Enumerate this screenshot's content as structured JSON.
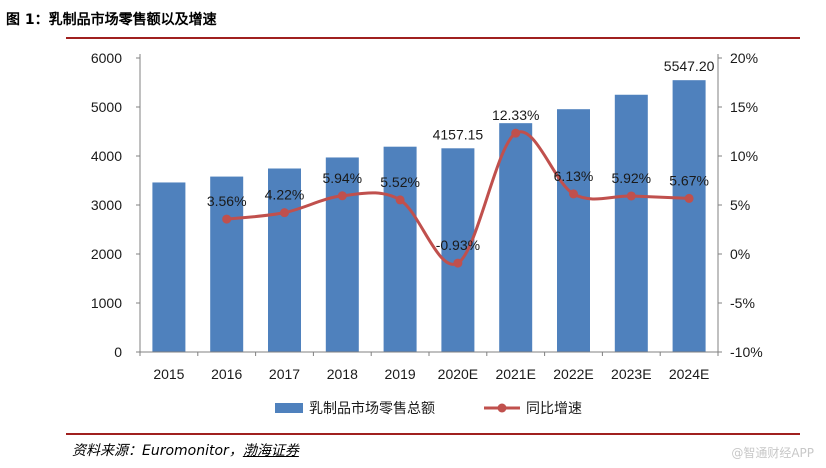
{
  "figure": {
    "title": "图 1：乳制品市场零售额以及增速",
    "source_label": "资料来源：",
    "source_main": "Euromonitor，",
    "source_org": "渤海证券",
    "watermark": "@智通财经APP"
  },
  "chart_data": {
    "type": "bar+line",
    "categories": [
      "2015",
      "2016",
      "2017",
      "2018",
      "2019",
      "2020E",
      "2021E",
      "2022E",
      "2023E",
      "2024E"
    ],
    "series": [
      {
        "name": "乳制品市场零售总额",
        "type": "bar",
        "axis": "left",
        "color": "#4f81bd",
        "values": [
          3460,
          3580,
          3745,
          3970,
          4190,
          4157.15,
          4670,
          4955,
          5250,
          5547.2
        ],
        "labels": [
          "",
          "",
          "",
          "",
          "",
          "4157.15",
          "",
          "",
          "",
          "5547.20"
        ]
      },
      {
        "name": "同比增速",
        "type": "line",
        "axis": "right",
        "color": "#c0504d",
        "values": [
          null,
          3.56,
          4.22,
          5.94,
          5.52,
          -0.93,
          12.33,
          6.13,
          5.92,
          5.67
        ],
        "labels": [
          "",
          "3.56%",
          "4.22%",
          "5.94%",
          "5.52%",
          "-0.93%",
          "12.33%",
          "6.13%",
          "5.92%",
          "5.67%"
        ]
      }
    ],
    "y_left": {
      "min": 0,
      "max": 6000,
      "ticks": [
        0,
        1000,
        2000,
        3000,
        4000,
        5000,
        6000
      ]
    },
    "y_right": {
      "min": -10,
      "max": 20,
      "ticks": [
        -10,
        -5,
        0,
        5,
        10,
        15,
        20
      ],
      "tick_labels": [
        "-10%",
        "-5%",
        "0%",
        "5%",
        "10%",
        "15%",
        "20%"
      ]
    },
    "legend_position": "bottom"
  }
}
